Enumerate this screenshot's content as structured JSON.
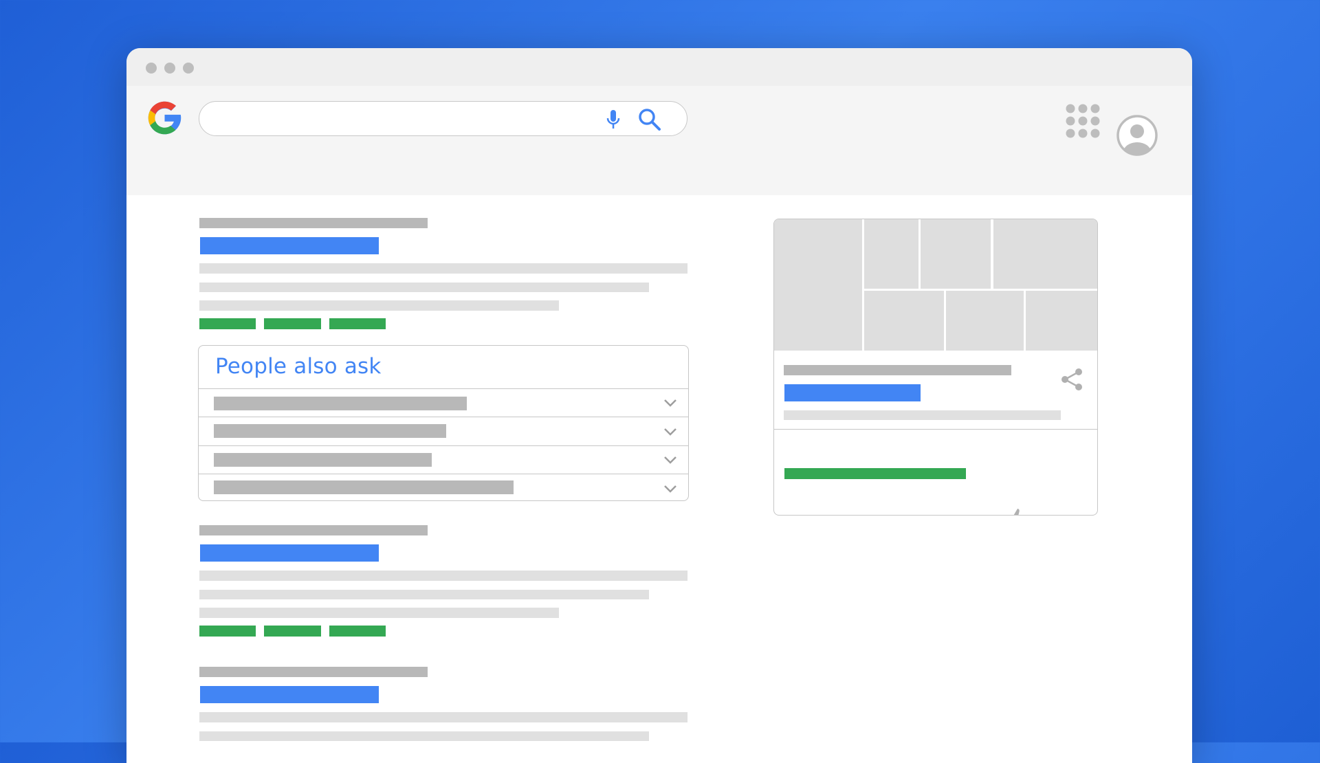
{
  "window": {
    "controls": [
      "close-dot",
      "minimize-dot",
      "maximize-dot"
    ]
  },
  "header": {
    "logo": "google-g-logo",
    "search": {
      "value": "",
      "placeholder": "",
      "icons": [
        "microphone-icon",
        "search-icon"
      ]
    },
    "right_icons": [
      "apps-grid-icon",
      "account-avatar-icon"
    ]
  },
  "people_also_ask": {
    "title": "People also ask",
    "row_count": 4,
    "row_icon": "chevron-down-icon"
  },
  "knowledge_panel": {
    "icons": [
      "share-icon",
      "thumbs-up-icon",
      "thumbs-down-icon"
    ]
  },
  "colors": {
    "blue": "#4285f4",
    "green": "#34a853",
    "red": "#ea4335",
    "yellow": "#fbbc05",
    "gray": "#b8b8b8",
    "light_gray": "#e0e0e0",
    "background": "#2c6fe2"
  }
}
